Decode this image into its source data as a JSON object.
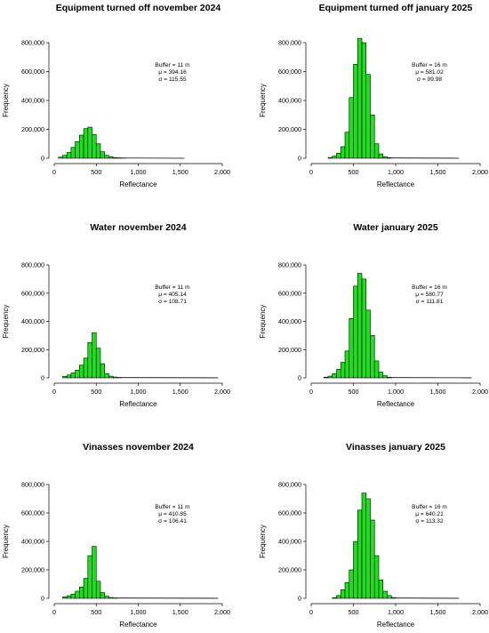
{
  "chart_data": [
    {
      "type": "bar",
      "title": "Equipment turned off november 2024",
      "xlabel": "Reflectance",
      "ylabel": "Frequency",
      "xlim": [
        0,
        2000
      ],
      "ylim": [
        0,
        800000
      ],
      "xticks": [
        0,
        500,
        1000,
        1500,
        2000
      ],
      "xtick_labels": [
        "0",
        "500",
        "1,000",
        "1,500",
        "2,000"
      ],
      "yticks": [
        0,
        200000,
        400000,
        600000,
        800000
      ],
      "ytick_labels": [
        "0",
        "200,000",
        "400,000",
        "600,000",
        "800,000"
      ],
      "bin_width": 50,
      "bins_start": [
        50,
        100,
        150,
        200,
        250,
        300,
        350,
        400,
        450,
        500,
        550,
        600,
        650,
        700,
        750,
        800
      ],
      "values": [
        8000,
        20000,
        40000,
        75000,
        115000,
        160000,
        205000,
        215000,
        165000,
        100000,
        45000,
        20000,
        10000,
        5000,
        3000,
        2000
      ],
      "tail": {
        "x": [
          850,
          1550
        ],
        "values": [
          1500,
          200
        ]
      },
      "stats": [
        "Buffer = 11 m",
        "μ =  394.16",
        "σ =  115.55"
      ],
      "grid": false,
      "color": "#1de01d"
    },
    {
      "type": "bar",
      "title": "Equipment turned off january 2025",
      "xlabel": "Reflectance",
      "ylabel": "Frequency",
      "xlim": [
        0,
        2000
      ],
      "ylim": [
        0,
        800000
      ],
      "xticks": [
        0,
        500,
        1000,
        1500,
        2000
      ],
      "xtick_labels": [
        "0",
        "500",
        "1,000",
        "1,500",
        "2,000"
      ],
      "yticks": [
        0,
        200000,
        400000,
        600000,
        800000
      ],
      "ytick_labels": [
        "0",
        "200,000",
        "400,000",
        "600,000",
        "800,000"
      ],
      "bin_width": 50,
      "bins_start": [
        200,
        250,
        300,
        350,
        400,
        450,
        500,
        550,
        600,
        650,
        700,
        750,
        800,
        850,
        900
      ],
      "values": [
        5000,
        15000,
        35000,
        80000,
        180000,
        420000,
        650000,
        830000,
        800000,
        580000,
        300000,
        100000,
        30000,
        10000,
        4000
      ],
      "tail": {
        "x": [
          950,
          1750
        ],
        "values": [
          2000,
          200
        ]
      },
      "stats": [
        "Buffer = 16 m",
        "μ =  581.02",
        "σ =  99.98"
      ],
      "grid": false,
      "color": "#1de01d"
    },
    {
      "type": "bar",
      "title": "Water november 2024",
      "xlabel": "Reflectance",
      "ylabel": "Frequency",
      "xlim": [
        0,
        2000
      ],
      "ylim": [
        0,
        800000
      ],
      "xticks": [
        0,
        500,
        1000,
        1500,
        2000
      ],
      "xtick_labels": [
        "0",
        "500",
        "1,000",
        "1,500",
        "2,000"
      ],
      "yticks": [
        0,
        200000,
        400000,
        600000,
        800000
      ],
      "ytick_labels": [
        "0",
        "200,000",
        "400,000",
        "600,000",
        "800,000"
      ],
      "bin_width": 50,
      "bins_start": [
        100,
        150,
        200,
        250,
        300,
        350,
        400,
        450,
        500,
        550,
        600,
        650,
        700,
        750
      ],
      "values": [
        10000,
        20000,
        35000,
        55000,
        90000,
        140000,
        250000,
        320000,
        210000,
        100000,
        30000,
        12000,
        6000,
        3000
      ],
      "tail": {
        "x": [
          800,
          1950
        ],
        "values": [
          2000,
          300
        ]
      },
      "stats": [
        "Buffer = 11 m",
        "μ =  405.14",
        "σ =  108.71"
      ],
      "grid": false,
      "color": "#1de01d"
    },
    {
      "type": "bar",
      "title": "Water january 2025",
      "xlabel": "Reflectance",
      "ylabel": "Frequency",
      "xlim": [
        0,
        2000
      ],
      "ylim": [
        0,
        800000
      ],
      "xticks": [
        0,
        500,
        1000,
        1500,
        2000
      ],
      "xtick_labels": [
        "0",
        "500",
        "1,000",
        "1,500",
        "2,000"
      ],
      "yticks": [
        0,
        200000,
        400000,
        600000,
        800000
      ],
      "ytick_labels": [
        "0",
        "200,000",
        "400,000",
        "600,000",
        "800,000"
      ],
      "bin_width": 50,
      "bins_start": [
        150,
        200,
        250,
        300,
        350,
        400,
        450,
        500,
        550,
        600,
        650,
        700,
        750,
        800,
        850,
        900
      ],
      "values": [
        5000,
        12000,
        30000,
        60000,
        110000,
        190000,
        420000,
        650000,
        740000,
        700000,
        480000,
        300000,
        120000,
        40000,
        15000,
        5000
      ],
      "tail": {
        "x": [
          950,
          1900
        ],
        "values": [
          2000,
          300
        ]
      },
      "stats": [
        "Buffer = 16 m",
        "μ =  580.77",
        "σ =  111.81"
      ],
      "grid": false,
      "color": "#1de01d"
    },
    {
      "type": "bar",
      "title": "Vinasses november 2024",
      "xlabel": "Reflectance",
      "ylabel": "Frequency",
      "xlim": [
        0,
        2000
      ],
      "ylim": [
        0,
        800000
      ],
      "xticks": [
        0,
        500,
        1000,
        1500,
        2000
      ],
      "xtick_labels": [
        "0",
        "500",
        "1,000",
        "1,500",
        "2,000"
      ],
      "yticks": [
        0,
        200000,
        400000,
        600000,
        800000
      ],
      "ytick_labels": [
        "0",
        "200,000",
        "400,000",
        "600,000",
        "800,000"
      ],
      "bin_width": 50,
      "bins_start": [
        100,
        150,
        200,
        250,
        300,
        350,
        400,
        450,
        500,
        550,
        600,
        650,
        700
      ],
      "values": [
        10000,
        18000,
        30000,
        50000,
        80000,
        140000,
        300000,
        365000,
        120000,
        40000,
        15000,
        6000,
        3000
      ],
      "tail": {
        "x": [
          750,
          1950
        ],
        "values": [
          2000,
          300
        ]
      },
      "stats": [
        "Buffer = 11 m",
        "μ =  410.85",
        "σ =  106.41"
      ],
      "grid": false,
      "color": "#1de01d"
    },
    {
      "type": "bar",
      "title": "Vinasses january 2025",
      "xlabel": "Reflectance",
      "ylabel": "Frequency",
      "xlim": [
        0,
        2000
      ],
      "ylim": [
        0,
        800000
      ],
      "xticks": [
        0,
        500,
        1000,
        1500,
        2000
      ],
      "xtick_labels": [
        "0",
        "500",
        "1,000",
        "1,500",
        "2,000"
      ],
      "yticks": [
        0,
        200000,
        400000,
        600000,
        800000
      ],
      "ytick_labels": [
        "0",
        "200,000",
        "400,000",
        "600,000",
        "800,000"
      ],
      "bin_width": 50,
      "bins_start": [
        250,
        300,
        350,
        400,
        450,
        500,
        550,
        600,
        650,
        700,
        750,
        800,
        850,
        900,
        950
      ],
      "values": [
        5000,
        20000,
        60000,
        110000,
        200000,
        400000,
        620000,
        740000,
        700000,
        550000,
        300000,
        130000,
        50000,
        20000,
        6000
      ],
      "tail": {
        "x": [
          1000,
          1750
        ],
        "values": [
          2000,
          300
        ]
      },
      "stats": [
        "Buffer = 16 m",
        "μ =  640.21",
        "σ =  113.32"
      ],
      "grid": false,
      "color": "#1de01d"
    }
  ]
}
